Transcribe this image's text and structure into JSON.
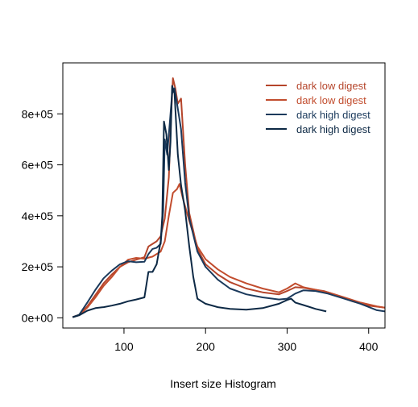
{
  "chart_data": {
    "type": "line",
    "xlabel": "Insert size Histogram",
    "ylabel": "",
    "xlim": [
      25,
      420
    ],
    "ylim": [
      -40000,
      1000000
    ],
    "x_ticks": [
      100,
      200,
      300,
      400
    ],
    "x_tick_labels": [
      "100",
      "200",
      "300",
      "400"
    ],
    "y_ticks": [
      0,
      200000,
      400000,
      600000,
      800000
    ],
    "y_tick_labels": [
      "0e+00",
      "2e+05",
      "4e+05",
      "6e+05",
      "8e+05"
    ],
    "grid": false,
    "legend_position": "top-right",
    "series": [
      {
        "name": "dark low digest",
        "color": "#b5452b",
        "points": [
          [
            37,
            3000
          ],
          [
            45,
            12000
          ],
          [
            55,
            45000
          ],
          [
            65,
            90000
          ],
          [
            75,
            135000
          ],
          [
            85,
            170000
          ],
          [
            95,
            200000
          ],
          [
            105,
            218000
          ],
          [
            115,
            228000
          ],
          [
            125,
            238000
          ],
          [
            130,
            280000
          ],
          [
            135,
            290000
          ],
          [
            140,
            300000
          ],
          [
            145,
            320000
          ],
          [
            150,
            390000
          ],
          [
            155,
            550000
          ],
          [
            158,
            810000
          ],
          [
            160,
            940000
          ],
          [
            163,
            900000
          ],
          [
            166,
            840000
          ],
          [
            170,
            860000
          ],
          [
            175,
            600000
          ],
          [
            180,
            410000
          ],
          [
            190,
            270000
          ],
          [
            200,
            210000
          ],
          [
            215,
            170000
          ],
          [
            230,
            140000
          ],
          [
            250,
            115000
          ],
          [
            270,
            100000
          ],
          [
            290,
            92000
          ],
          [
            300,
            105000
          ],
          [
            310,
            120000
          ],
          [
            320,
            118000
          ],
          [
            330,
            112000
          ],
          [
            345,
            105000
          ],
          [
            360,
            90000
          ],
          [
            380,
            65000
          ],
          [
            400,
            48000
          ],
          [
            420,
            40000
          ]
        ]
      },
      {
        "name": "dark low digest",
        "color": "#c24d2e",
        "points": [
          [
            37,
            3000
          ],
          [
            45,
            10000
          ],
          [
            55,
            40000
          ],
          [
            65,
            80000
          ],
          [
            75,
            125000
          ],
          [
            85,
            160000
          ],
          [
            95,
            200000
          ],
          [
            105,
            228000
          ],
          [
            115,
            235000
          ],
          [
            125,
            232000
          ],
          [
            135,
            240000
          ],
          [
            145,
            260000
          ],
          [
            150,
            300000
          ],
          [
            155,
            400000
          ],
          [
            160,
            490000
          ],
          [
            165,
            505000
          ],
          [
            168,
            525000
          ],
          [
            172,
            470000
          ],
          [
            180,
            380000
          ],
          [
            190,
            280000
          ],
          [
            200,
            230000
          ],
          [
            215,
            190000
          ],
          [
            230,
            160000
          ],
          [
            250,
            135000
          ],
          [
            270,
            115000
          ],
          [
            290,
            100000
          ],
          [
            300,
            115000
          ],
          [
            310,
            135000
          ],
          [
            320,
            120000
          ],
          [
            335,
            110000
          ],
          [
            350,
            100000
          ],
          [
            370,
            80000
          ],
          [
            390,
            60000
          ],
          [
            410,
            45000
          ],
          [
            420,
            40000
          ]
        ]
      },
      {
        "name": "dark high digest",
        "color": "#1b3a5c",
        "points": [
          [
            37,
            3000
          ],
          [
            45,
            12000
          ],
          [
            55,
            60000
          ],
          [
            65,
            110000
          ],
          [
            75,
            155000
          ],
          [
            85,
            185000
          ],
          [
            95,
            210000
          ],
          [
            105,
            222000
          ],
          [
            115,
            218000
          ],
          [
            125,
            220000
          ],
          [
            130,
            250000
          ],
          [
            135,
            270000
          ],
          [
            140,
            275000
          ],
          [
            145,
            290000
          ],
          [
            148,
            420000
          ],
          [
            150,
            700000
          ],
          [
            153,
            640000
          ],
          [
            156,
            760000
          ],
          [
            159,
            880000
          ],
          [
            162,
            900000
          ],
          [
            166,
            820000
          ],
          [
            170,
            740000
          ],
          [
            175,
            530000
          ],
          [
            180,
            390000
          ],
          [
            190,
            260000
          ],
          [
            200,
            200000
          ],
          [
            215,
            150000
          ],
          [
            230,
            115000
          ],
          [
            250,
            92000
          ],
          [
            270,
            80000
          ],
          [
            290,
            72000
          ],
          [
            300,
            75000
          ],
          [
            310,
            95000
          ],
          [
            320,
            108000
          ],
          [
            335,
            105000
          ],
          [
            350,
            95000
          ],
          [
            370,
            75000
          ],
          [
            390,
            55000
          ],
          [
            410,
            30000
          ],
          [
            420,
            25000
          ]
        ]
      },
      {
        "name": "dark high digest",
        "color": "#0d2945",
        "points": [
          [
            37,
            2000
          ],
          [
            45,
            10000
          ],
          [
            55,
            28000
          ],
          [
            65,
            38000
          ],
          [
            75,
            42000
          ],
          [
            85,
            48000
          ],
          [
            95,
            55000
          ],
          [
            105,
            65000
          ],
          [
            115,
            72000
          ],
          [
            125,
            80000
          ],
          [
            130,
            180000
          ],
          [
            135,
            180000
          ],
          [
            140,
            210000
          ],
          [
            145,
            300000
          ],
          [
            147,
            400000
          ],
          [
            149,
            770000
          ],
          [
            152,
            720000
          ],
          [
            155,
            580000
          ],
          [
            157,
            690000
          ],
          [
            159,
            910000
          ],
          [
            162,
            880000
          ],
          [
            166,
            640000
          ],
          [
            170,
            520000
          ],
          [
            175,
            420000
          ],
          [
            180,
            280000
          ],
          [
            185,
            160000
          ],
          [
            190,
            75000
          ],
          [
            200,
            55000
          ],
          [
            215,
            42000
          ],
          [
            230,
            35000
          ],
          [
            250,
            32000
          ],
          [
            270,
            38000
          ],
          [
            290,
            55000
          ],
          [
            300,
            70000
          ],
          [
            305,
            75000
          ],
          [
            310,
            60000
          ],
          [
            320,
            50000
          ],
          [
            335,
            35000
          ],
          [
            348,
            25000
          ]
        ]
      }
    ]
  }
}
